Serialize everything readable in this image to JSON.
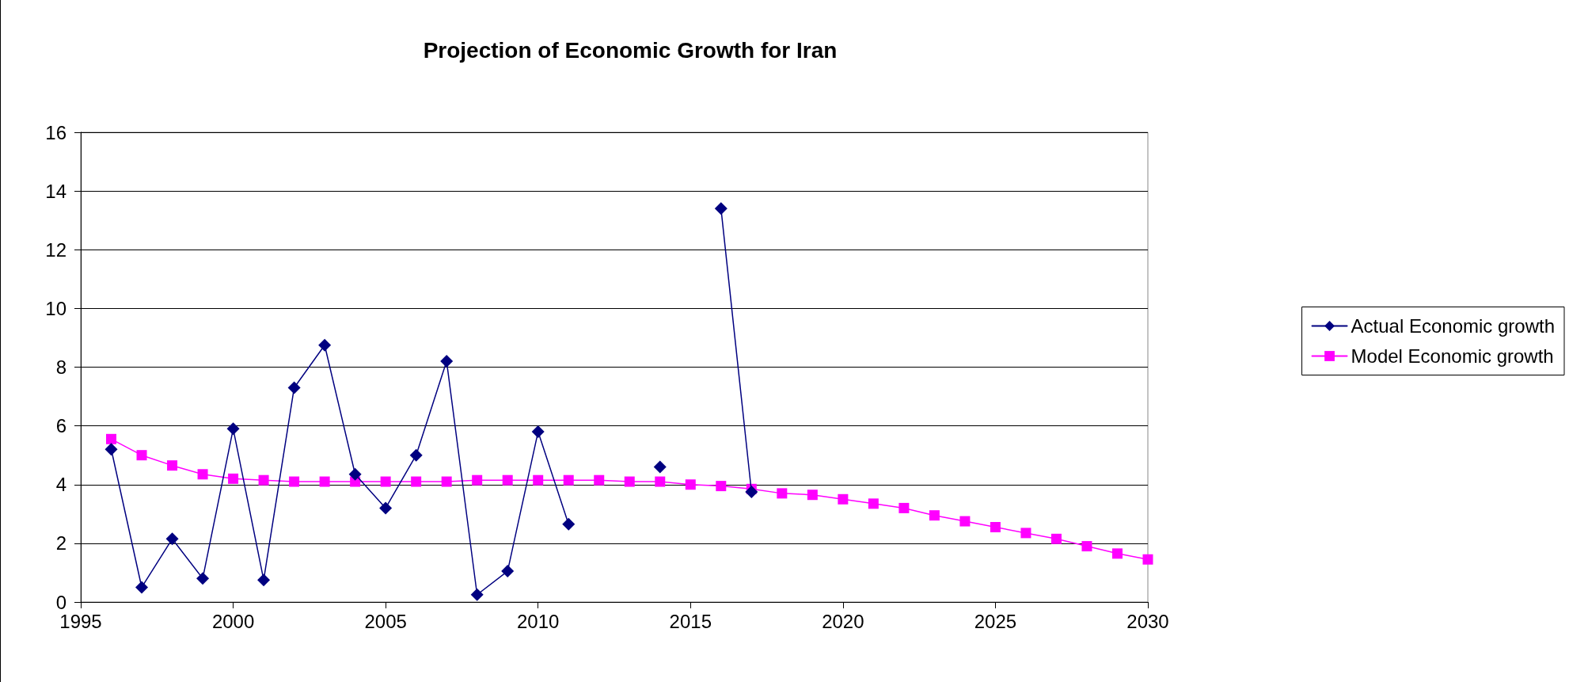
{
  "chart_data": {
    "type": "line",
    "title": "Projection of Economic Growth for Iran",
    "x": [
      1996,
      1997,
      1998,
      1999,
      2000,
      2001,
      2002,
      2003,
      2004,
      2005,
      2006,
      2007,
      2008,
      2009,
      2010,
      2011,
      2012,
      2013,
      2014,
      2015,
      2016,
      2017,
      2018,
      2019,
      2020,
      2021,
      2022,
      2023,
      2024,
      2025,
      2026,
      2027,
      2028,
      2029,
      2030
    ],
    "series": [
      {
        "name": "Actual Economic growth",
        "color": "#000080",
        "marker": "diamond",
        "values": [
          5.2,
          0.5,
          2.15,
          0.8,
          5.9,
          0.75,
          7.3,
          8.75,
          4.35,
          3.2,
          5.0,
          8.2,
          0.25,
          1.05,
          5.8,
          2.65,
          null,
          null,
          4.6,
          null,
          13.4,
          3.75,
          null,
          null,
          null,
          null,
          null,
          null,
          null,
          null,
          null,
          null,
          null,
          null,
          null
        ]
      },
      {
        "name": "Model Economic growth",
        "color": "#ff00ff",
        "marker": "square",
        "values": [
          5.55,
          5.0,
          4.65,
          4.35,
          4.2,
          4.15,
          4.1,
          4.1,
          4.1,
          4.1,
          4.1,
          4.1,
          4.15,
          4.15,
          4.15,
          4.15,
          4.15,
          4.1,
          4.1,
          4.0,
          3.95,
          3.85,
          3.7,
          3.65,
          3.5,
          3.35,
          3.2,
          2.95,
          2.75,
          2.55,
          2.35,
          2.15,
          1.9,
          1.65,
          1.45
        ]
      }
    ],
    "xlim": [
      1995,
      2030
    ],
    "xticks": [
      1995,
      2000,
      2005,
      2010,
      2015,
      2020,
      2025,
      2030
    ],
    "ylim": [
      0,
      16
    ],
    "yticks": [
      0,
      2,
      4,
      6,
      8,
      10,
      12,
      14,
      16
    ],
    "grid": "y",
    "legend": "right",
    "line_style": "solid"
  }
}
